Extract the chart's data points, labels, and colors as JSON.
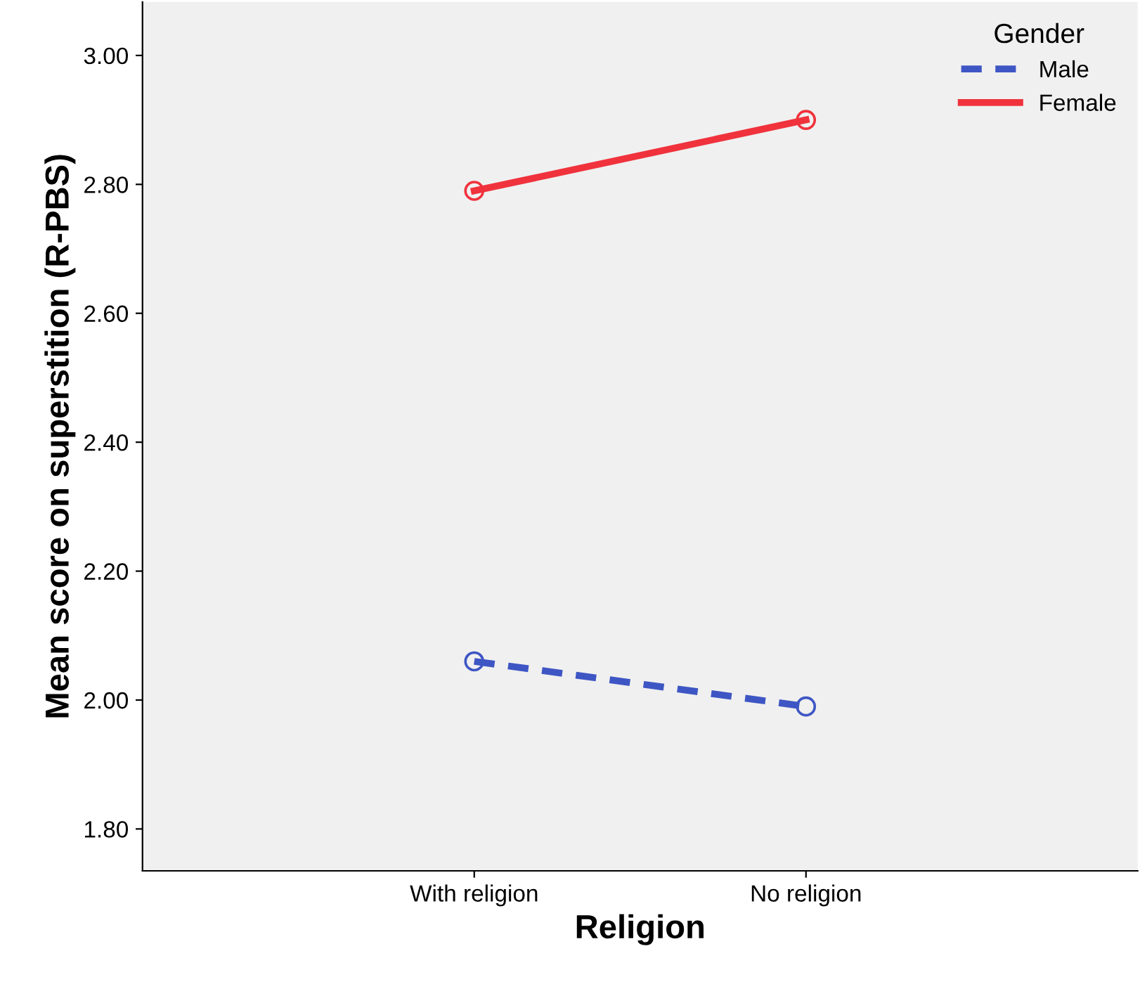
{
  "chart_data": {
    "type": "line",
    "xlabel": "Religion",
    "ylabel": "Mean score on superstition (R-PBS)",
    "legend_title": "Gender",
    "categories": [
      "With religion",
      "No religion"
    ],
    "series": [
      {
        "name": "Male",
        "color": "#3e56c4",
        "values": [
          2.06,
          1.99
        ],
        "line_style": "dashed"
      },
      {
        "name": "Female",
        "color": "#f0323c",
        "values": [
          2.79,
          2.9
        ],
        "line_style": "solid"
      }
    ],
    "ylim": [
      1.735,
      3.083
    ],
    "yticks": [
      {
        "value": 1.8,
        "label": "1.80"
      },
      {
        "value": 2.0,
        "label": "2.00"
      },
      {
        "value": 2.2,
        "label": "2.20"
      },
      {
        "value": 2.4,
        "label": "2.40"
      },
      {
        "value": 2.6,
        "label": "2.60"
      },
      {
        "value": 2.8,
        "label": "2.80"
      },
      {
        "value": 3.0,
        "label": "3.00"
      }
    ],
    "marker": "circle",
    "legend": "top right",
    "grid": false
  }
}
